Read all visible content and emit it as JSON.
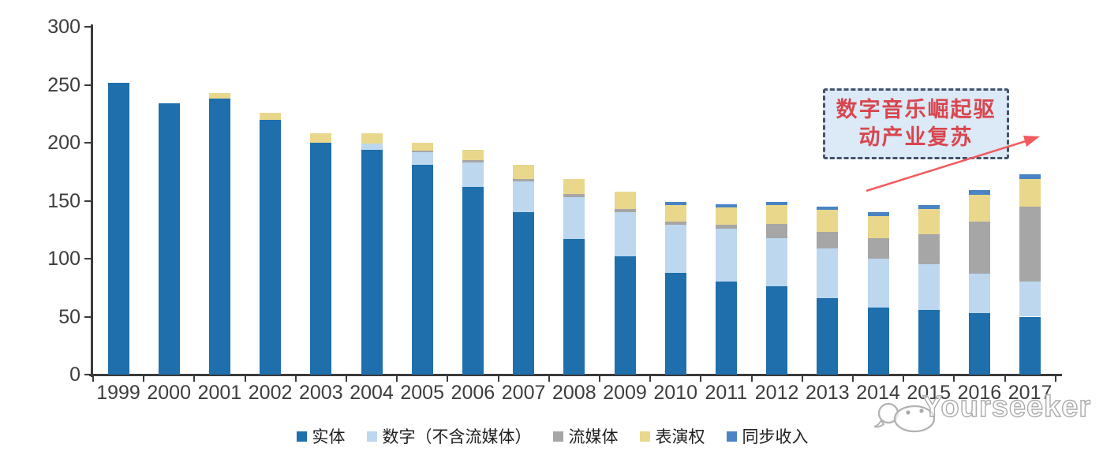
{
  "chart_data": {
    "type": "bar",
    "stacked": true,
    "title": "",
    "xlabel": "",
    "ylabel": "",
    "ylim": [
      0,
      300
    ],
    "yticks": [
      0,
      50,
      100,
      150,
      200,
      250,
      300
    ],
    "grid": false,
    "legend_position": "bottom",
    "categories": [
      "1999",
      "2000",
      "2001",
      "2002",
      "2003",
      "2004",
      "2005",
      "2006",
      "2007",
      "2008",
      "2009",
      "2010",
      "2011",
      "2012",
      "2013",
      "2014",
      "2015",
      "2016",
      "2017"
    ],
    "series": [
      {
        "key": "physical",
        "name": "实体",
        "color": "#1E6FAC",
        "values": [
          252,
          234,
          238,
          220,
          200,
          194,
          181,
          162,
          140,
          117,
          102,
          88,
          80,
          76,
          66,
          58,
          56,
          53,
          50
        ]
      },
      {
        "key": "digital-ex-streaming",
        "name": "数字（不含流媒体）",
        "color": "#BDD7EE",
        "values": [
          0,
          0,
          0,
          0,
          0,
          5,
          11,
          21,
          27,
          36,
          38,
          41,
          46,
          42,
          43,
          42,
          39,
          34,
          30
        ]
      },
      {
        "key": "streaming",
        "name": "流媒体",
        "color": "#A6A6A6",
        "values": [
          0,
          0,
          0,
          0,
          0,
          0,
          1,
          2,
          2,
          3,
          3,
          3,
          3,
          12,
          14,
          18,
          26,
          45,
          65
        ]
      },
      {
        "key": "performance-rights",
        "name": "表演权",
        "color": "#E9D78C",
        "values": [
          0,
          0,
          5,
          6,
          8,
          9,
          7,
          9,
          12,
          13,
          15,
          14,
          15,
          16,
          19,
          19,
          22,
          23,
          24
        ]
      },
      {
        "key": "sync-revenue",
        "name": "同步收入",
        "color": "#4A84C4",
        "values": [
          0,
          0,
          0,
          0,
          0,
          0,
          0,
          0,
          0,
          0,
          0,
          3,
          3,
          3,
          3,
          3,
          3,
          4,
          4
        ]
      }
    ]
  },
  "annotation": {
    "line1": "数字音乐崛起驱",
    "line2": "动产业复苏",
    "text_color": "#D8464E",
    "box_fill": "#DCE9F7",
    "box_border": "#44546A",
    "arrow_color": "#F15B5E"
  },
  "watermark": {
    "text": "Yourseeker"
  },
  "colors": {
    "axis": "#3A3A3A",
    "tick_label": "#3D3D3D"
  }
}
